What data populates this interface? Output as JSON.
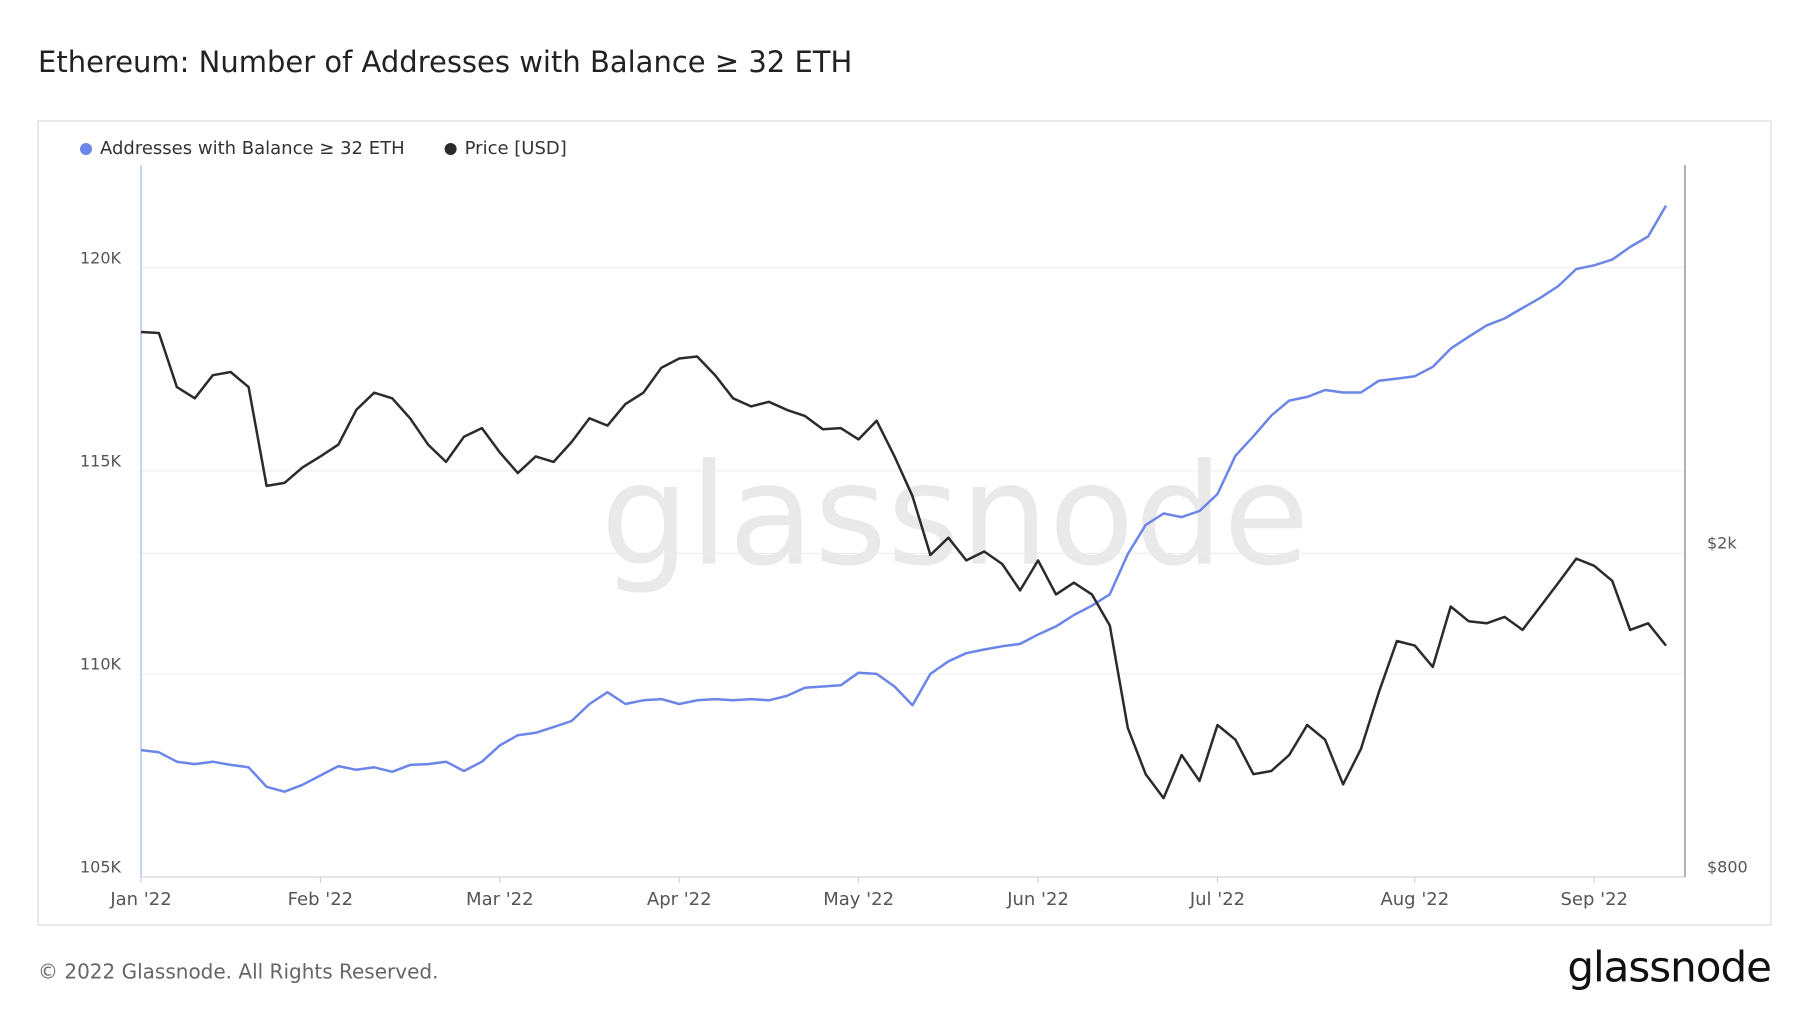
{
  "chart_data": {
    "type": "line",
    "title": "Ethereum: Number of Addresses with Balance ≥ 32 ETH",
    "watermark": "glassnode",
    "copyright": "© 2022 Glassnode. All Rights Reserved.",
    "logo": "glassnode",
    "categories": [
      "Jan '22",
      null,
      null,
      null,
      null,
      null,
      null,
      null,
      null,
      null,
      "Feb '22",
      null,
      null,
      null,
      null,
      null,
      null,
      null,
      null,
      null,
      "Mar '22",
      null,
      null,
      null,
      null,
      null,
      null,
      null,
      null,
      null,
      "Apr '22",
      null,
      null,
      null,
      null,
      null,
      null,
      null,
      null,
      null,
      "May '22",
      null,
      null,
      null,
      null,
      null,
      null,
      null,
      null,
      null,
      "Jun '22",
      null,
      null,
      null,
      null,
      null,
      null,
      null,
      null,
      null,
      "Jul '22",
      null,
      null,
      null,
      null,
      null,
      null,
      null,
      null,
      null,
      null,
      "Aug '22",
      null,
      null,
      null,
      null,
      null,
      null,
      null,
      null,
      null,
      "Sep '22",
      null,
      null,
      null,
      null
    ],
    "series": [
      {
        "name": "Addresses with Balance ≥ 32 ETH",
        "color": "#6b86e8",
        "axis": "y",
        "values": [
          108125,
          108070,
          107840,
          107780,
          107840,
          107760,
          107700,
          107220,
          107100,
          107270,
          107500,
          107730,
          107640,
          107700,
          107590,
          107760,
          107780,
          107840,
          107610,
          107840,
          108240,
          108490,
          108550,
          108690,
          108840,
          109260,
          109550,
          109260,
          109350,
          109380,
          109260,
          109350,
          109380,
          109350,
          109380,
          109350,
          109460,
          109660,
          109690,
          109720,
          110030,
          110000,
          109690,
          109230,
          110000,
          110310,
          110510,
          110600,
          110680,
          110740,
          110970,
          111170,
          111450,
          111680,
          111960,
          112950,
          113670,
          113950,
          113860,
          114010,
          114430,
          115370,
          115850,
          116360,
          116730,
          116820,
          116990,
          116930,
          116930,
          117220,
          117270,
          117330,
          117560,
          118010,
          118300,
          118580,
          118750,
          119010,
          119260,
          119550,
          119970,
          120060,
          120200,
          120510,
          120770,
          121530
        ]
      },
      {
        "name": "Price [USD]",
        "color": "#2b2b2b",
        "axis": "y2",
        "values": [
          3740,
          3730,
          3200,
          3100,
          3310,
          3340,
          3200,
          2420,
          2440,
          2550,
          2630,
          2720,
          3000,
          3150,
          3100,
          2930,
          2720,
          2590,
          2780,
          2850,
          2660,
          2510,
          2630,
          2590,
          2740,
          2930,
          2870,
          3050,
          3150,
          3380,
          3470,
          3490,
          3310,
          3100,
          3030,
          3070,
          3000,
          2950,
          2840,
          2850,
          2760,
          2910,
          2630,
          2350,
          1990,
          2090,
          1960,
          2010,
          1940,
          1800,
          1960,
          1780,
          1840,
          1780,
          1630,
          1220,
          1070,
          1000,
          1130,
          1050,
          1230,
          1180,
          1070,
          1080,
          1130,
          1230,
          1180,
          1040,
          1150,
          1350,
          1560,
          1540,
          1450,
          1720,
          1650,
          1640,
          1670,
          1610,
          1720,
          1840,
          1970,
          1930,
          1850,
          1610,
          1640,
          1540
        ]
      }
    ],
    "ylim": [
      105000,
      122530
    ],
    "yticks": [
      {
        "value": 105000,
        "label": "105K"
      },
      {
        "value": 110000,
        "label": "110K"
      },
      {
        "value": 115000,
        "label": "115K"
      },
      {
        "value": 120000,
        "label": "120K"
      }
    ],
    "y2lim": [
      800,
      6000
    ],
    "y2ticks": [
      {
        "value": 800,
        "label": "$800"
      },
      {
        "value": 2000,
        "label": "$2k"
      }
    ],
    "y2log": true,
    "grid": true,
    "legend": "top"
  }
}
